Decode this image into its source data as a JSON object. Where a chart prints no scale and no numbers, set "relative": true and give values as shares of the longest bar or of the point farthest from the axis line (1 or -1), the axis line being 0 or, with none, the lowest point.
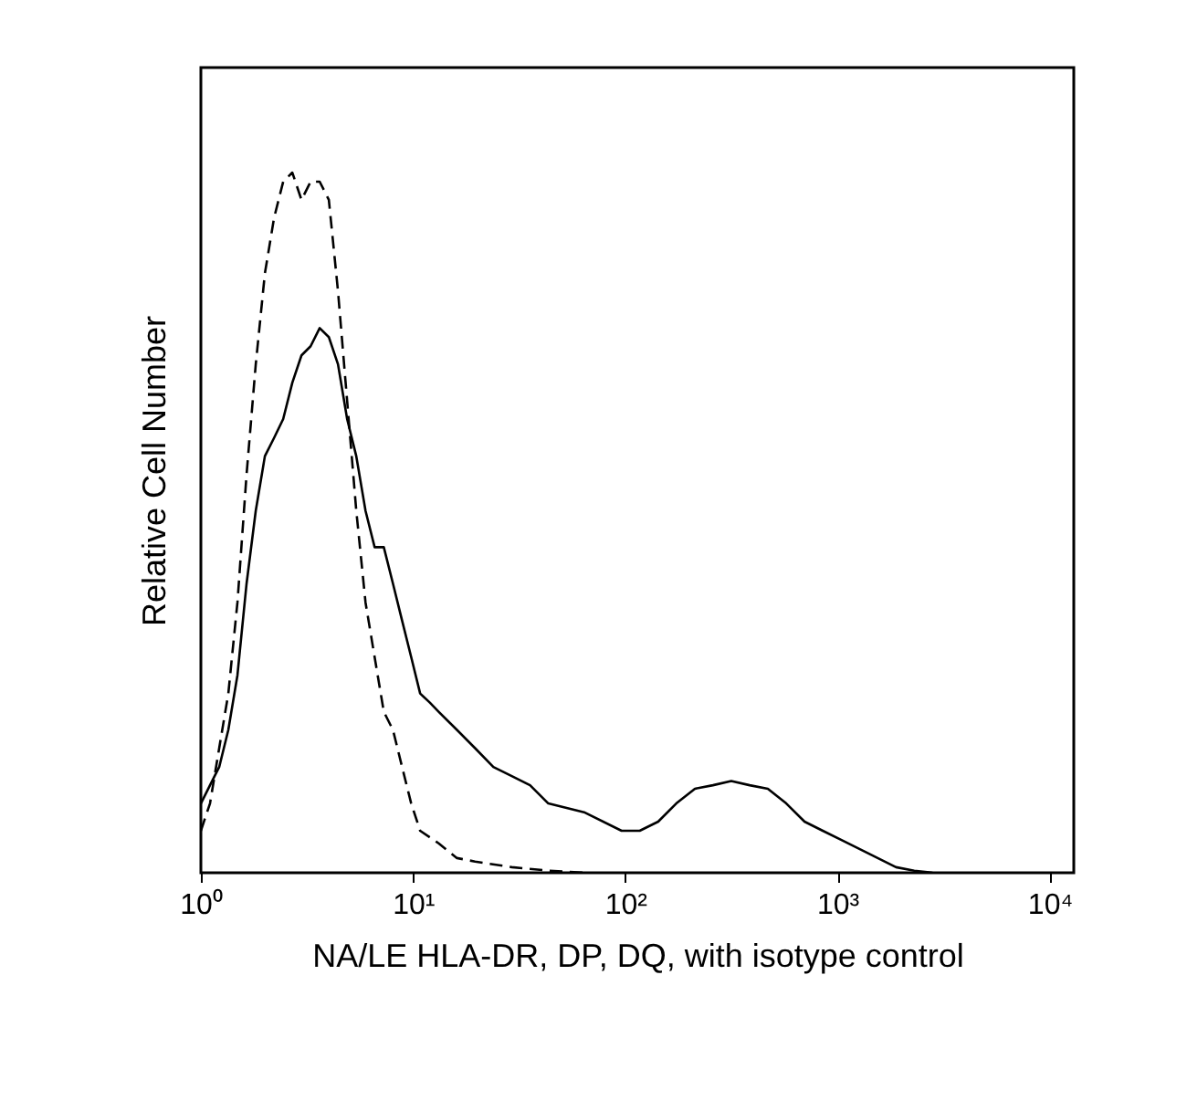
{
  "chart_data": {
    "type": "line",
    "relative": true,
    "log": "x",
    "xlabel": "NA/LE HLA-DR, DP, DQ, with isotype control",
    "ylabel": "Relative Cell Number",
    "xlim": [
      1,
      13000
    ],
    "xticks": [
      {
        "value": 1,
        "label": "10⁰"
      },
      {
        "value": 10,
        "label": "10¹"
      },
      {
        "value": 100,
        "label": "10²"
      },
      {
        "value": 1000,
        "label": "10³"
      },
      {
        "value": 10000,
        "label": "10⁴"
      }
    ],
    "series": [
      {
        "color": "#000000",
        "line_style": "solid",
        "x": [
          1,
          1.104,
          1.22,
          1.347,
          1.487,
          1.642,
          1.814,
          2.003,
          2.212,
          2.443,
          2.698,
          2.98,
          3.29,
          3.63,
          4.01,
          4.43,
          4.89,
          5.4,
          5.97,
          6.59,
          7.28,
          8.04,
          8.88,
          9.8,
          10.8,
          12,
          13.2,
          16.1,
          19.6,
          23.9,
          29.2,
          35.6,
          43.4,
          64.6,
          96.1,
          117,
          143,
          174,
          213,
          259,
          316,
          386,
          470,
          574,
          700,
          853,
          1040,
          1269,
          1548,
          1888,
          2302,
          2807
        ],
        "values": [
          0.099,
          0.125,
          0.151,
          0.204,
          0.282,
          0.413,
          0.517,
          0.595,
          0.621,
          0.648,
          0.7,
          0.739,
          0.752,
          0.778,
          0.765,
          0.726,
          0.648,
          0.595,
          0.517,
          0.465,
          0.465,
          0.413,
          0.36,
          0.308,
          0.256,
          0.243,
          0.23,
          0.204,
          0.178,
          0.151,
          0.138,
          0.125,
          0.099,
          0.086,
          0.06,
          0.06,
          0.073,
          0.099,
          0.12,
          0.125,
          0.131,
          0.125,
          0.12,
          0.099,
          0.073,
          0.06,
          0.047,
          0.034,
          0.021,
          0.008,
          0.003,
          0
        ]
      },
      {
        "color": "#000000",
        "line_style": "dashed",
        "x": [
          1,
          1.104,
          1.22,
          1.347,
          1.487,
          1.642,
          1.814,
          2.003,
          2.212,
          2.443,
          2.698,
          2.98,
          3.29,
          3.63,
          4.01,
          4.43,
          4.89,
          5.4,
          5.97,
          6.59,
          7.28,
          8.04,
          8.88,
          9.8,
          10.8,
          13.2,
          16.1,
          19.6,
          29.2,
          43.4,
          64.6
        ],
        "values": [
          0.06,
          0.099,
          0.178,
          0.256,
          0.386,
          0.569,
          0.726,
          0.856,
          0.935,
          0.987,
          1,
          0.961,
          0.987,
          0.987,
          0.961,
          0.83,
          0.674,
          0.517,
          0.386,
          0.308,
          0.23,
          0.204,
          0.151,
          0.099,
          0.06,
          0.042,
          0.021,
          0.016,
          0.008,
          0.003,
          0
        ]
      }
    ]
  }
}
